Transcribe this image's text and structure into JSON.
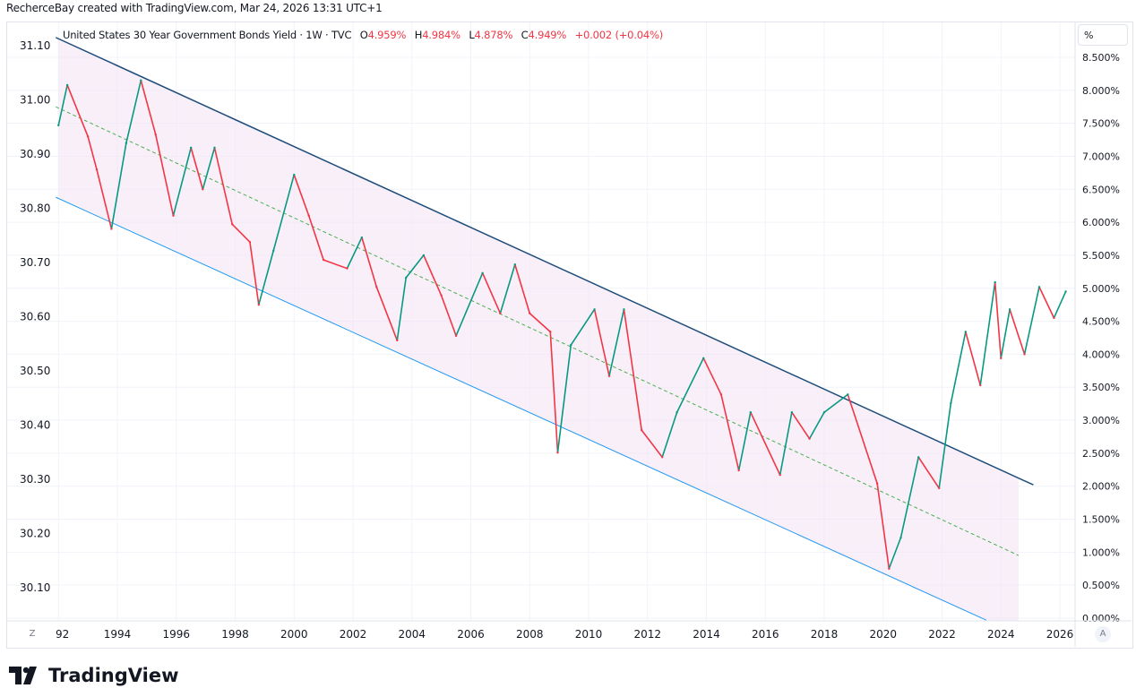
{
  "credit": "RecherceBay created with TradingView.com, Mar 24, 2026 13:31 UTC+1",
  "legend": {
    "symbol": "United States 30 Year Government Bonds Yield · 1W · TVC",
    "o_label": "O",
    "o": "4.959%",
    "h_label": "H",
    "h": "4.984%",
    "l_label": "L",
    "l": "4.878%",
    "c_label": "C",
    "c": "4.949%",
    "change": "+0.002 (+0.04%)"
  },
  "scale_button": "%",
  "corner_left": "Z",
  "corner_right": "A",
  "logo_text": "TradingView",
  "colors": {
    "up": "#089981",
    "down": "#f23645",
    "channel_upper": "#1e4d7a",
    "channel_lower": "#2196f3",
    "midline": "#4caf50",
    "channel_fill": "#f3e5f5"
  },
  "chart_data": {
    "type": "line",
    "title": "United States 30 Year Government Bonds Yield",
    "xlabel": "",
    "ylabel": "",
    "xlim": [
      1992,
      2026.5
    ],
    "ylim": [
      0,
      8.5
    ],
    "grid": true,
    "x_ticks": [
      "92",
      "1994",
      "1996",
      "1998",
      "2000",
      "2002",
      "2004",
      "2006",
      "2008",
      "2010",
      "2012",
      "2014",
      "2016",
      "2018",
      "2020",
      "2022",
      "2024",
      "2026"
    ],
    "y_ticks_right": [
      "8.500%",
      "8.000%",
      "7.500%",
      "7.000%",
      "6.500%",
      "6.000%",
      "5.500%",
      "5.000%",
      "4.500%",
      "4.000%",
      "3.500%",
      "3.000%",
      "2.500%",
      "2.000%",
      "1.500%",
      "1.000%",
      "0.500%",
      "0.000%"
    ],
    "y_ticks_left": [
      "31.10",
      "31.00",
      "30.90",
      "30.80",
      "30.70",
      "30.60",
      "30.50",
      "30.40",
      "30.30",
      "30.20",
      "30.10"
    ],
    "series": [
      {
        "x": [
          1992.0,
          1992.3,
          1993.0,
          1993.3,
          1993.8,
          1994.3,
          1994.8,
          1995.3,
          1995.9,
          1996.5,
          1996.9,
          1997.3,
          1997.9,
          1998.5,
          1998.8,
          1999.3,
          2000.0,
          2000.5,
          2001.0,
          2001.8,
          2002.3,
          2002.8,
          2003.5,
          2003.8,
          2004.4,
          2005.0,
          2005.5,
          2006.4,
          2007.0,
          2007.5,
          2008.0,
          2008.7,
          2008.95,
          2009.4,
          2010.2,
          2010.7,
          2011.2,
          2011.8,
          2012.5,
          2013.0,
          2013.9,
          2014.5,
          2015.1,
          2015.5,
          2016.5,
          2016.9,
          2017.5,
          2018.0,
          2018.8,
          2019.8,
          2020.2,
          2020.6,
          2021.2,
          2021.9,
          2022.3,
          2022.8,
          2023.3,
          2023.8,
          2024.0,
          2024.3,
          2024.8,
          2025.3,
          2025.8,
          2026.2
        ],
        "y": [
          7.47,
          8.08,
          7.3,
          6.8,
          5.9,
          7.2,
          8.15,
          7.33,
          6.1,
          7.13,
          6.5,
          7.13,
          5.97,
          5.7,
          4.75,
          5.57,
          6.72,
          6.1,
          5.43,
          5.3,
          5.77,
          5.02,
          4.21,
          5.16,
          5.5,
          4.89,
          4.28,
          5.23,
          4.62,
          5.36,
          4.62,
          4.34,
          2.51,
          4.14,
          4.68,
          3.67,
          4.68,
          2.85,
          2.44,
          3.12,
          3.94,
          3.39,
          2.24,
          3.12,
          2.17,
          3.12,
          2.72,
          3.12,
          3.39,
          2.04,
          0.75,
          1.22,
          2.44,
          1.97,
          3.26,
          4.34,
          3.53,
          5.09,
          3.94,
          4.68,
          4.0,
          5.02,
          4.55,
          4.95
        ]
      }
    ],
    "channel": {
      "upper": [
        [
          1992.0,
          8.8
        ],
        [
          2025.1,
          2.02
        ]
      ],
      "lower": [
        [
          1992.0,
          6.38
        ],
        [
          2023.5,
          -0.03
        ]
      ],
      "midline": [
        [
          1992.0,
          7.75
        ],
        [
          2024.6,
          0.95
        ]
      ],
      "fill_end_x": 2024.6
    }
  }
}
